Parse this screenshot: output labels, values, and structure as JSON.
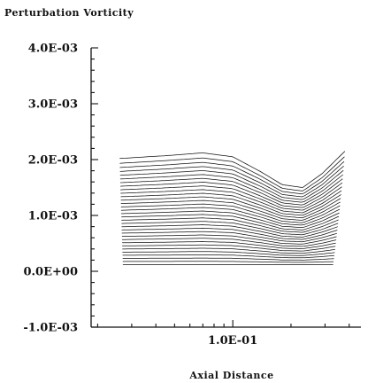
{
  "chart_data": {
    "type": "line",
    "title": "",
    "ylabel": "Perturbation Vorticity",
    "xlabel": "Axial Distance",
    "ylim": [
      -0.001,
      0.004
    ],
    "xscale": "log",
    "x_tick_labels": [
      {
        "x": 0.1,
        "label": "1.0E-01"
      }
    ],
    "y_tick_labels": [
      {
        "y": 0.004,
        "label": "4.0E-03"
      },
      {
        "y": 0.003,
        "label": "3.0E-03"
      },
      {
        "y": 0.002,
        "label": "2.0E-03"
      },
      {
        "y": 0.001,
        "label": "1.0E-03"
      },
      {
        "y": 0.0,
        "label": "0.0E+00"
      },
      {
        "y": -0.001,
        "label": "-1.0E-03"
      }
    ],
    "grid": false,
    "legend": "none",
    "waterfall": {
      "curve_count": 32,
      "back_curve": {
        "x": [
          0.026,
          0.045,
          0.07,
          0.1,
          0.14,
          0.18,
          0.23,
          0.29,
          0.38
        ],
        "y": [
          0.00202,
          0.00207,
          0.00212,
          0.00205,
          0.00178,
          0.00155,
          0.0015,
          0.00175,
          0.00215
        ]
      },
      "front_curve": {
        "x": [
          0.026,
          0.38
        ],
        "y": [
          0.00012,
          0.00012
        ]
      }
    }
  }
}
